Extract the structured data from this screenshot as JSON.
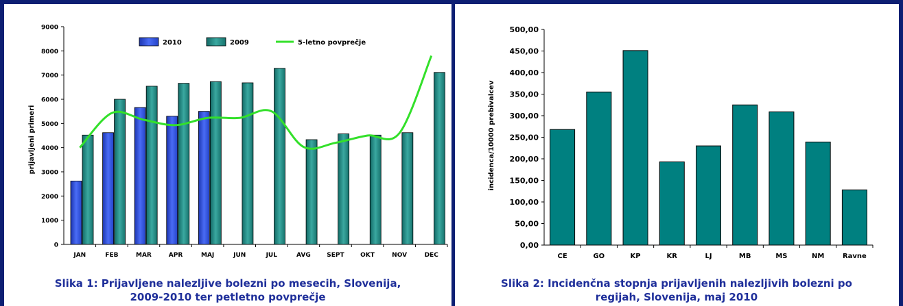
{
  "chart_data": [
    {
      "type": "bar",
      "title": "",
      "xlabel": "",
      "ylabel": "prijavljeni primeri",
      "ylim": [
        0,
        9000
      ],
      "yticks": [
        "0",
        "1000",
        "2000",
        "3000",
        "4000",
        "5000",
        "6000",
        "7000",
        "8000",
        "9000"
      ],
      "categories": [
        "JAN",
        "FEB",
        "MAR",
        "APR",
        "MAJ",
        "JUN",
        "JUL",
        "AVG",
        "SEPT",
        "OKT",
        "NOV",
        "DEC"
      ],
      "series": [
        {
          "name": "2010",
          "type": "bar",
          "color": "#3a5ae0",
          "values": [
            2620,
            4620,
            5660,
            5300,
            5500,
            null,
            null,
            null,
            null,
            null,
            null,
            null
          ]
        },
        {
          "name": "2009",
          "type": "bar",
          "color": "#1f8f8a",
          "values": [
            4520,
            6000,
            6540,
            6660,
            6730,
            6680,
            7280,
            4330,
            4570,
            4520,
            4620,
            7110
          ]
        },
        {
          "name": "5-letno povprečje",
          "type": "line",
          "color": "#33e02a",
          "values": [
            4000,
            5430,
            5150,
            4930,
            5230,
            5230,
            5500,
            4030,
            4200,
            4500,
            4600,
            7800
          ]
        }
      ],
      "legend_position": "top",
      "grid": false,
      "caption_lines": [
        "Slika 1:  Prijavljene nalezljive bolezni po mesecih, Slovenija,",
        "2009-2010 ter petletno povprečje"
      ]
    },
    {
      "type": "bar",
      "title": "",
      "xlabel": "",
      "ylabel": "incidenca/10000 prebivalcev",
      "ylim": [
        0,
        500
      ],
      "yticks": [
        "0,00",
        "50,00",
        "100,00",
        "150,00",
        "200,00",
        "250,00",
        "300,00",
        "350,00",
        "400,00",
        "450,00",
        "500,00"
      ],
      "categories": [
        "CE",
        "GO",
        "KP",
        "KR",
        "LJ",
        "MB",
        "MS",
        "NM",
        "Ravne"
      ],
      "values": [
        268,
        355,
        451,
        193,
        230,
        325,
        309,
        239,
        128
      ],
      "color": "#008080",
      "grid": false,
      "caption_lines": [
        "Slika 2:  Incidenčna stopnja prijavljenih nalezljivih bolezni po",
        "regijah, Slovenija,  maj 2010"
      ]
    }
  ]
}
